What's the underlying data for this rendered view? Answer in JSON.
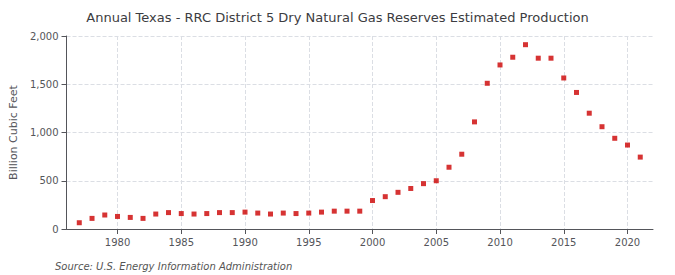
{
  "chart_data": {
    "type": "scatter",
    "title": "Annual Texas - RRC District 5 Dry Natural Gas Reserves Estimated Production",
    "ylabel": "Billion Cubic Feet",
    "annotations": [
      "Source: U.S. Energy Information Administration"
    ],
    "x": [
      1977,
      1978,
      1979,
      1980,
      1981,
      1982,
      1983,
      1984,
      1985,
      1986,
      1987,
      1988,
      1989,
      1990,
      1991,
      1992,
      1993,
      1994,
      1995,
      1996,
      1997,
      1998,
      1999,
      2000,
      2001,
      2002,
      2003,
      2004,
      2005,
      2006,
      2007,
      2008,
      2009,
      2010,
      2011,
      2012,
      2013,
      2014,
      2015,
      2016,
      2017,
      2018,
      2019,
      2020,
      2021
    ],
    "values": [
      65,
      110,
      145,
      130,
      120,
      110,
      155,
      170,
      160,
      155,
      160,
      170,
      170,
      175,
      165,
      155,
      165,
      160,
      165,
      175,
      185,
      185,
      185,
      295,
      335,
      380,
      420,
      470,
      500,
      640,
      775,
      1110,
      1510,
      1700,
      1780,
      1910,
      1770,
      1770,
      1565,
      1415,
      1200,
      1060,
      940,
      870,
      745
    ],
    "color": "#cc0000",
    "marker": "square",
    "xlim": [
      1976,
      2022
    ],
    "xticks": [
      1980,
      1985,
      1990,
      1995,
      2000,
      2005,
      2010,
      2015,
      2020
    ],
    "ylim": [
      0,
      2000
    ],
    "yticks": [
      0,
      500,
      {
        "value": 1000,
        "label": "1,000"
      },
      {
        "value": 1500,
        "label": "1,500"
      },
      {
        "value": 2000,
        "label": "2,000"
      }
    ],
    "grid": true
  }
}
